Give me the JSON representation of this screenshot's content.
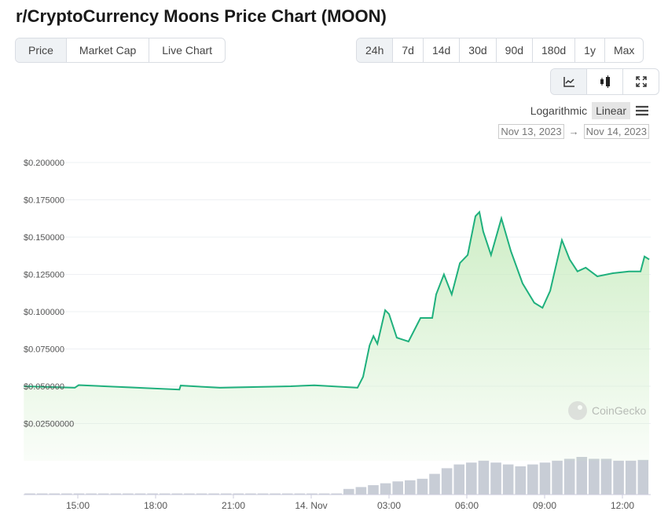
{
  "title": "r/CryptoCurrency Moons Price Chart (MOON)",
  "tabs": [
    {
      "label": "Price",
      "active": true
    },
    {
      "label": "Market Cap"
    },
    {
      "label": "Live Chart"
    }
  ],
  "ranges": [
    {
      "label": "24h",
      "active": true
    },
    {
      "label": "7d"
    },
    {
      "label": "14d"
    },
    {
      "label": "30d"
    },
    {
      "label": "90d"
    },
    {
      "label": "180d"
    },
    {
      "label": "1y"
    },
    {
      "label": "Max"
    }
  ],
  "chart_types": [
    {
      "icon": "line-chart-icon",
      "active": true
    },
    {
      "icon": "candlestick-icon"
    },
    {
      "icon": "fullscreen-icon"
    }
  ],
  "scale": {
    "logarithmic": "Logarithmic",
    "linear": "Linear",
    "active": "Linear",
    "menu_icon": "hamburger-menu-icon"
  },
  "dates": {
    "from": "Nov 13, 2023",
    "arrow": "→",
    "to": "Nov 14, 2023"
  },
  "watermark": "CoinGecko",
  "colors": {
    "line": "#1fb07d",
    "fill": "#c9ecc0",
    "volume": "#c8cdd6",
    "grid": "#eef0f3"
  },
  "chart_data": {
    "type": "line",
    "title": "",
    "xlabel": "",
    "ylabel": "",
    "grid": true,
    "ylim": [
      0,
      0.2
    ],
    "y_ticks": [
      {
        "value": 0.2,
        "label": "$0.200000"
      },
      {
        "value": 0.175,
        "label": "$0.175000"
      },
      {
        "value": 0.15,
        "label": "$0.150000"
      },
      {
        "value": 0.125,
        "label": "$0.125000"
      },
      {
        "value": 0.1,
        "label": "$0.100000"
      },
      {
        "value": 0.075,
        "label": "$0.075000"
      },
      {
        "value": 0.05,
        "label": "$0.050000"
      },
      {
        "value": 0.025,
        "label": "$0.02500000"
      }
    ],
    "x_ticks": [
      {
        "t": "2023-11-13T15:00",
        "label": "15:00"
      },
      {
        "t": "2023-11-13T18:00",
        "label": "18:00"
      },
      {
        "t": "2023-11-13T21:00",
        "label": "21:00"
      },
      {
        "t": "2023-11-14T00:00",
        "label": "14. Nov"
      },
      {
        "t": "2023-11-14T03:00",
        "label": "03:00"
      },
      {
        "t": "2023-11-14T06:00",
        "label": "06:00"
      },
      {
        "t": "2023-11-14T09:00",
        "label": "09:00"
      },
      {
        "t": "2023-11-14T12:00",
        "label": "12:00"
      }
    ],
    "series": [
      {
        "x": [
          "2023-11-13T12:55",
          "2023-11-13T14:53",
          "2023-11-13T15:02",
          "2023-11-13T18:55",
          "2023-11-13T18:58",
          "2023-11-13T20:29",
          "2023-11-13T23:13",
          "2023-11-14T00:07",
          "2023-11-14T01:47",
          "2023-11-14T02:00",
          "2023-11-14T02:15",
          "2023-11-14T02:24",
          "2023-11-14T02:33",
          "2023-11-14T02:51",
          "2023-11-14T03:00",
          "2023-11-14T03:18",
          "2023-11-14T03:45",
          "2023-11-14T04:13",
          "2023-11-14T04:40",
          "2023-11-14T04:49",
          "2023-11-14T05:07",
          "2023-11-14T05:25",
          "2023-11-14T05:44",
          "2023-11-14T06:02",
          "2023-11-14T06:20",
          "2023-11-14T06:29",
          "2023-11-14T06:38",
          "2023-11-14T06:56",
          "2023-11-14T07:20",
          "2023-11-14T07:42",
          "2023-11-14T08:09",
          "2023-11-14T08:36",
          "2023-11-14T08:55",
          "2023-11-14T09:13",
          "2023-11-14T09:40",
          "2023-11-14T09:58",
          "2023-11-14T10:16",
          "2023-11-14T10:35",
          "2023-11-14T11:02",
          "2023-11-14T11:38",
          "2023-11-14T12:15",
          "2023-11-14T12:42",
          "2023-11-14T12:51",
          "2023-11-14T13:02"
        ],
        "y": [
          0.05,
          0.049,
          0.0508,
          0.0478,
          0.0505,
          0.049,
          0.05,
          0.0507,
          0.049,
          0.0563,
          0.0774,
          0.0837,
          0.0784,
          0.101,
          0.0984,
          0.0826,
          0.08,
          0.0958,
          0.0958,
          0.1116,
          0.125,
          0.1116,
          0.1326,
          0.138,
          0.164,
          0.1668,
          0.1537,
          0.138,
          0.1626,
          0.1405,
          0.119,
          0.106,
          0.1026,
          0.114,
          0.148,
          0.135,
          0.127,
          0.1295,
          0.1237,
          0.1258,
          0.127,
          0.127,
          0.137,
          0.135
        ]
      }
    ],
    "volume_relative": [
      0.03,
      0.03,
      0.03,
      0.03,
      0.03,
      0.03,
      0.03,
      0.03,
      0.03,
      0.03,
      0.03,
      0.03,
      0.03,
      0.03,
      0.03,
      0.03,
      0.03,
      0.03,
      0.03,
      0.03,
      0.03,
      0.03,
      0.03,
      0.03,
      0.03,
      0.03,
      0.15,
      0.2,
      0.25,
      0.3,
      0.35,
      0.38,
      0.42,
      0.55,
      0.7,
      0.8,
      0.85,
      0.9,
      0.85,
      0.8,
      0.75,
      0.8,
      0.85,
      0.9,
      0.95,
      1.0,
      0.95,
      0.95,
      0.9,
      0.9,
      0.92
    ]
  }
}
